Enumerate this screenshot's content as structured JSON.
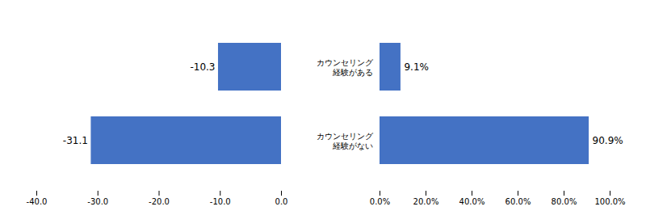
{
  "chart_data": [
    {
      "type": "bar",
      "orientation": "horizontal",
      "categories": [
        "カウンセリング\n経験がある",
        "カウンセリング\n経験がない"
      ],
      "values": [
        -10.3,
        -31.1
      ],
      "color": "#4472C4",
      "xlim": [
        -40,
        0
      ],
      "xticks": [
        {
          "value": -40,
          "label": "-40.0"
        },
        {
          "value": -30,
          "label": "-30.0"
        },
        {
          "value": -20,
          "label": "-20.0"
        },
        {
          "value": -10,
          "label": "-10.0"
        },
        {
          "value": 0,
          "label": "0.0"
        }
      ],
      "data_labels": true,
      "grid": false
    },
    {
      "type": "bar",
      "orientation": "horizontal",
      "categories": [
        "カウンセリング\n経験がある",
        "カウンセリング\n経験がない"
      ],
      "values": [
        9.1,
        90.9
      ],
      "value_labels": [
        "9.1%",
        "90.9%"
      ],
      "color": "#4472C4",
      "xlim": [
        0,
        100
      ],
      "xticks": [
        {
          "value": 0,
          "label": "0.0%"
        },
        {
          "value": 20,
          "label": "20.0%"
        },
        {
          "value": 40,
          "label": "40.0%"
        },
        {
          "value": 60,
          "label": "60.0%"
        },
        {
          "value": 80,
          "label": "80.0%"
        },
        {
          "value": 100,
          "label": "100.0%"
        }
      ],
      "data_labels": true,
      "grid": false
    }
  ]
}
